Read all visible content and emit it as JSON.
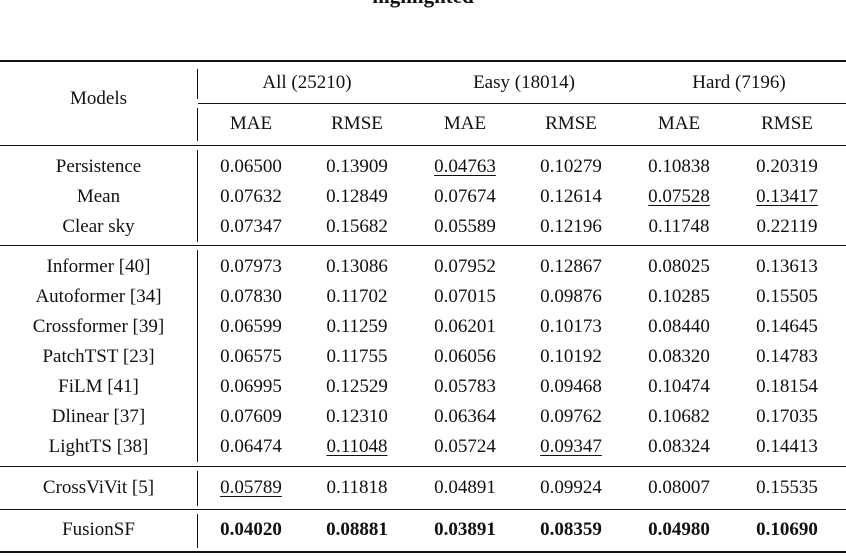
{
  "caption": {
    "text": "highlighted",
    "underlined": ""
  },
  "header": {
    "models": "Models",
    "groups": [
      "All (25210)",
      "Easy (18014)",
      "Hard (7196)"
    ],
    "metrics": [
      "MAE",
      "RMSE",
      "MAE",
      "RMSE",
      "MAE",
      "RMSE"
    ]
  },
  "sections": [
    {
      "rows": [
        {
          "model": "Persistence",
          "values": [
            "0.06500",
            "0.13909",
            "0.04763",
            "0.10279",
            "0.10838",
            "0.20319"
          ],
          "underline": [
            2
          ],
          "bold": []
        },
        {
          "model": "Mean",
          "values": [
            "0.07632",
            "0.12849",
            "0.07674",
            "0.12614",
            "0.07528",
            "0.13417"
          ],
          "underline": [
            4,
            5
          ],
          "bold": []
        },
        {
          "model": "Clear sky",
          "values": [
            "0.07347",
            "0.15682",
            "0.05589",
            "0.12196",
            "0.11748",
            "0.22119"
          ],
          "underline": [],
          "bold": []
        }
      ]
    },
    {
      "rows": [
        {
          "model": "Informer [40]",
          "values": [
            "0.07973",
            "0.13086",
            "0.07952",
            "0.12867",
            "0.08025",
            "0.13613"
          ],
          "underline": [],
          "bold": []
        },
        {
          "model": "Autoformer [34]",
          "values": [
            "0.07830",
            "0.11702",
            "0.07015",
            "0.09876",
            "0.10285",
            "0.15505"
          ],
          "underline": [],
          "bold": []
        },
        {
          "model": "Crossformer [39]",
          "values": [
            "0.06599",
            "0.11259",
            "0.06201",
            "0.10173",
            "0.08440",
            "0.14645"
          ],
          "underline": [],
          "bold": []
        },
        {
          "model": "PatchTST [23]",
          "values": [
            "0.06575",
            "0.11755",
            "0.06056",
            "0.10192",
            "0.08320",
            "0.14783"
          ],
          "underline": [],
          "bold": []
        },
        {
          "model": "FiLM [41]",
          "values": [
            "0.06995",
            "0.12529",
            "0.05783",
            "0.09468",
            "0.10474",
            "0.18154"
          ],
          "underline": [],
          "bold": []
        },
        {
          "model": "Dlinear [37]",
          "values": [
            "0.07609",
            "0.12310",
            "0.06364",
            "0.09762",
            "0.10682",
            "0.17035"
          ],
          "underline": [],
          "bold": []
        },
        {
          "model": "LightTS [38]",
          "values": [
            "0.06474",
            "0.11048",
            "0.05724",
            "0.09347",
            "0.08324",
            "0.14413"
          ],
          "underline": [
            1,
            3
          ],
          "bold": []
        }
      ]
    },
    {
      "rows": [
        {
          "model": "CrossViVit [5]",
          "values": [
            "0.05789",
            "0.11818",
            "0.04891",
            "0.09924",
            "0.08007",
            "0.15535"
          ],
          "underline": [
            0
          ],
          "bold": []
        }
      ]
    },
    {
      "rows": [
        {
          "model": "FusionSF",
          "values": [
            "0.04020",
            "0.08881",
            "0.03891",
            "0.08359",
            "0.04980",
            "0.10690"
          ],
          "underline": [],
          "bold": [
            0,
            1,
            2,
            3,
            4,
            5
          ]
        }
      ]
    }
  ]
}
